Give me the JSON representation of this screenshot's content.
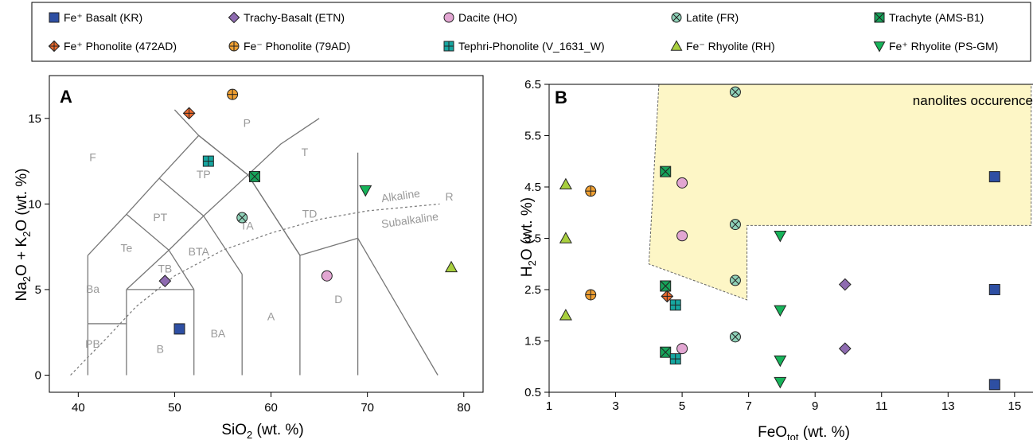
{
  "legend": [
    {
      "label": "Fe⁺ Basalt (KR)",
      "marker": "square",
      "color": "#2e4fa3"
    },
    {
      "label": "Trachy-Basalt (ETN)",
      "marker": "diamond",
      "color": "#8e6bb0"
    },
    {
      "label": "Dacite (HO)",
      "marker": "circle",
      "color": "#e2a6d2"
    },
    {
      "label": "Latite (FR)",
      "marker": "circlex",
      "color": "#8fd1b8"
    },
    {
      "label": "Trachyte (AMS-B1)",
      "marker": "squarex",
      "color": "#17a35a"
    },
    {
      "label": "Fe⁺ Phonolite (472AD)",
      "marker": "diamondplus",
      "color": "#ee6a2d"
    },
    {
      "label": "Fe⁻ Phonolite (79AD)",
      "marker": "circleplus",
      "color": "#f0a032"
    },
    {
      "label": "Tephri-Phonolite (V_1631_W)",
      "marker": "squareplus",
      "color": "#16a6a0"
    },
    {
      "label": "Fe⁻ Rhyolite (RH)",
      "marker": "triangle",
      "color": "#a8cf3e"
    },
    {
      "label": "Fe⁺ Rhyolite (PS-GM)",
      "marker": "triangledown",
      "color": "#16b45a"
    }
  ],
  "chart_data": [
    {
      "type": "scatter",
      "panel": "A",
      "xlabel": "SiO2 (wt. %)",
      "ylabel": "Na2O + K2O (wt. %)",
      "xlim": [
        37,
        82
      ],
      "ylim": [
        -1,
        17.5
      ],
      "xticks": [
        40,
        50,
        60,
        70,
        80
      ],
      "yticks": [
        0,
        5,
        10,
        15
      ],
      "fields": [
        {
          "label": "F",
          "x": 41.5,
          "y": 12.5
        },
        {
          "label": "P",
          "x": 57.5,
          "y": 14.5
        },
        {
          "label": "T",
          "x": 63.5,
          "y": 12.8
        },
        {
          "label": "TP",
          "x": 53,
          "y": 11.5
        },
        {
          "label": "PT",
          "x": 48.5,
          "y": 9
        },
        {
          "label": "TA",
          "x": 57.5,
          "y": 8.5
        },
        {
          "label": "TD",
          "x": 64,
          "y": 9.2
        },
        {
          "label": "Te",
          "x": 45,
          "y": 7.2
        },
        {
          "label": "BTA",
          "x": 52.5,
          "y": 7
        },
        {
          "label": "TB",
          "x": 49,
          "y": 6
        },
        {
          "label": "Ba",
          "x": 41.5,
          "y": 4.8
        },
        {
          "label": "PB",
          "x": 41.5,
          "y": 1.6
        },
        {
          "label": "B",
          "x": 48.5,
          "y": 1.3
        },
        {
          "label": "BA",
          "x": 54.5,
          "y": 2.2
        },
        {
          "label": "A",
          "x": 60,
          "y": 3.2
        },
        {
          "label": "D",
          "x": 67,
          "y": 4.2
        },
        {
          "label": "R",
          "x": 78.5,
          "y": 10.2
        }
      ],
      "separator_labels": [
        "Alkaline",
        "Subalkaline"
      ],
      "series": [
        {
          "name": "Fe⁺ Basalt (KR)",
          "x": [
            50.5
          ],
          "y": [
            2.7
          ]
        },
        {
          "name": "Trachy-Basalt (ETN)",
          "x": [
            49
          ],
          "y": [
            5.5
          ]
        },
        {
          "name": "Dacite (HO)",
          "x": [
            65.8
          ],
          "y": [
            5.8
          ]
        },
        {
          "name": "Latite (FR)",
          "x": [
            57
          ],
          "y": [
            9.2
          ]
        },
        {
          "name": "Trachyte (AMS-B1)",
          "x": [
            58.3
          ],
          "y": [
            11.6
          ]
        },
        {
          "name": "Fe⁺ Phonolite (472AD)",
          "x": [
            51.5
          ],
          "y": [
            15.3
          ]
        },
        {
          "name": "Fe⁻ Phonolite (79AD)",
          "x": [
            56
          ],
          "y": [
            16.4
          ]
        },
        {
          "name": "Tephri-Phonolite (V_1631_W)",
          "x": [
            53.5
          ],
          "y": [
            12.5
          ]
        },
        {
          "name": "Fe⁻ Rhyolite (RH)",
          "x": [
            78.7
          ],
          "y": [
            6.3
          ]
        },
        {
          "name": "Fe⁺ Rhyolite (PS-GM)",
          "x": [
            69.8
          ],
          "y": [
            10.8
          ]
        }
      ]
    },
    {
      "type": "scatter",
      "panel": "B",
      "xlabel": "FeOtot (wt. %)",
      "ylabel": "H2O (wt. %)",
      "xlim": [
        1,
        15.5
      ],
      "ylim": [
        0.5,
        6.5
      ],
      "xticks": [
        1,
        3,
        5,
        7,
        9,
        11,
        13,
        15
      ],
      "yticks": [
        0.5,
        1.5,
        2.5,
        3.5,
        4.5,
        5.5,
        6.5
      ],
      "annotation": "nanolites occurence",
      "region_polygon": [
        [
          4.3,
          6.5
        ],
        [
          15.5,
          6.5
        ],
        [
          15.5,
          3.75
        ],
        [
          6.95,
          3.75
        ],
        [
          6.95,
          2.3
        ],
        [
          4,
          3
        ]
      ],
      "series": [
        {
          "name": "Fe⁺ Basalt (KR)",
          "x": [
            14.4,
            14.4,
            14.4
          ],
          "y": [
            4.7,
            2.5,
            0.65
          ]
        },
        {
          "name": "Trachy-Basalt (ETN)",
          "x": [
            9.9,
            9.9
          ],
          "y": [
            2.6,
            1.35
          ]
        },
        {
          "name": "Dacite (HO)",
          "x": [
            5,
            5,
            5
          ],
          "y": [
            4.58,
            3.55,
            1.35
          ]
        },
        {
          "name": "Latite (FR)",
          "x": [
            6.6,
            6.6,
            6.6,
            6.6
          ],
          "y": [
            6.35,
            3.77,
            2.68,
            1.58
          ]
        },
        {
          "name": "Trachyte (AMS-B1)",
          "x": [
            4.5,
            4.5,
            4.5
          ],
          "y": [
            4.8,
            2.57,
            1.28
          ]
        },
        {
          "name": "Fe⁺ Phonolite (472AD)",
          "x": [
            4.55
          ],
          "y": [
            2.37
          ]
        },
        {
          "name": "Fe⁻ Phonolite (79AD)",
          "x": [
            2.25,
            2.25
          ],
          "y": [
            4.42,
            2.4
          ]
        },
        {
          "name": "Tephri-Phonolite (V_1631_W)",
          "x": [
            4.8,
            4.8
          ],
          "y": [
            2.2,
            1.15
          ]
        },
        {
          "name": "Fe⁻ Rhyolite (RH)",
          "x": [
            1.5,
            1.5,
            1.5
          ],
          "y": [
            4.55,
            3.5,
            2.0
          ]
        },
        {
          "name": "Fe⁺ Rhyolite (PS-GM)",
          "x": [
            7.95,
            7.95,
            7.95,
            7.95
          ],
          "y": [
            3.55,
            2.1,
            1.12,
            0.7
          ]
        }
      ]
    }
  ]
}
